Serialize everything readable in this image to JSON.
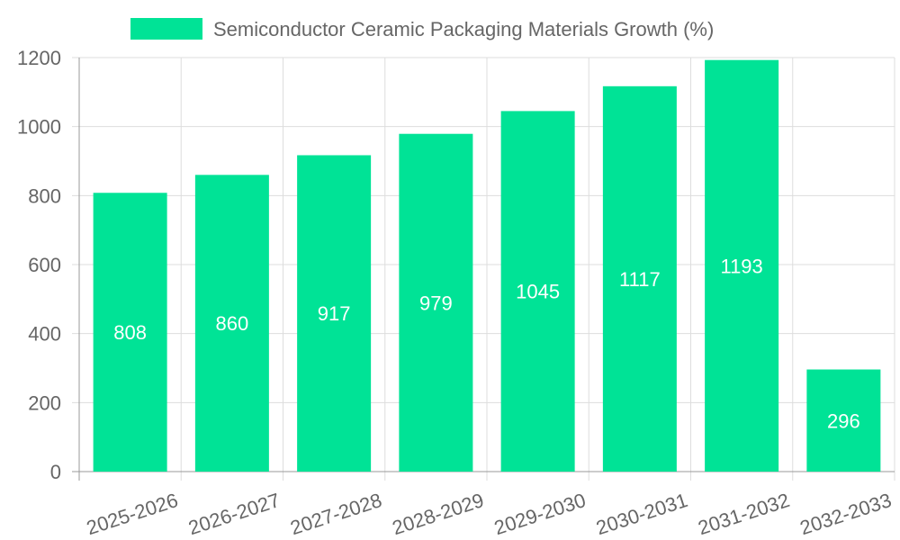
{
  "chart_data": {
    "type": "bar",
    "categories": [
      "2025-2026",
      "2026-2027",
      "2027-2028",
      "2028-2029",
      "2029-2030",
      "2030-2031",
      "2031-2032",
      "2032-2033"
    ],
    "series": [
      {
        "name": "Semiconductor Ceramic Packaging Materials Growth (%)",
        "values": [
          808,
          860,
          917,
          979,
          1045,
          1117,
          1193,
          296
        ],
        "color": "#00e396"
      }
    ],
    "ylim": [
      0,
      1200
    ],
    "yticks": [
      0,
      200,
      400,
      600,
      800,
      1000,
      1200
    ],
    "grid": true,
    "legend_position": "top",
    "title": "",
    "xlabel": "",
    "ylabel": ""
  }
}
